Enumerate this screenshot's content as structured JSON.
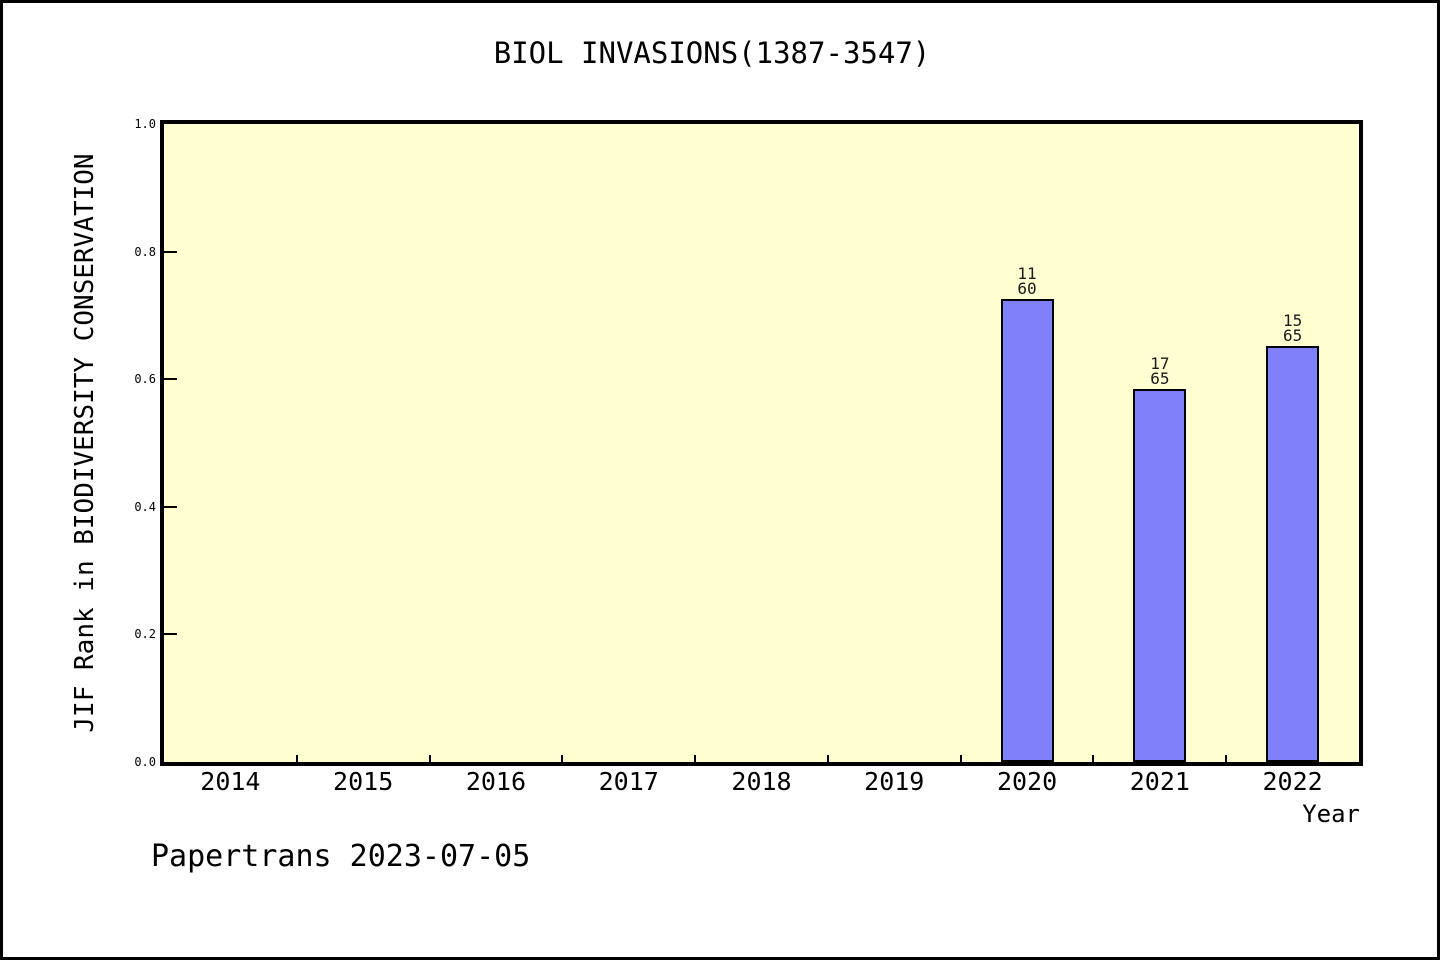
{
  "footer": "Papertrans 2023-07-05",
  "chart_data": {
    "type": "bar",
    "title": "BIOL INVASIONS(1387-3547)",
    "xlabel": "Year",
    "ylabel": "JIF Rank in BIODIVERSITY CONSERVATION",
    "categories": [
      "2014",
      "2015",
      "2016",
      "2017",
      "2018",
      "2019",
      "2020",
      "2021",
      "2022"
    ],
    "values": [
      null,
      null,
      null,
      null,
      null,
      null,
      0.725,
      0.585,
      0.652
    ],
    "bar_labels": [
      null,
      null,
      null,
      null,
      null,
      null,
      {
        "rank": "11",
        "total": "60"
      },
      {
        "rank": "17",
        "total": "65"
      },
      {
        "rank": "15",
        "total": "65"
      }
    ],
    "ylim": [
      0.0,
      1.0
    ],
    "yticks": [
      "0.0",
      "0.2",
      "0.4",
      "0.6",
      "0.8",
      "1.0"
    ],
    "grid": false,
    "legend": null,
    "colors": {
      "bar_fill": "#8080fa",
      "bar_edge": "#000000",
      "plot_background": "#ffffd2",
      "page_background": "#ffffff",
      "text": "#000000"
    }
  }
}
